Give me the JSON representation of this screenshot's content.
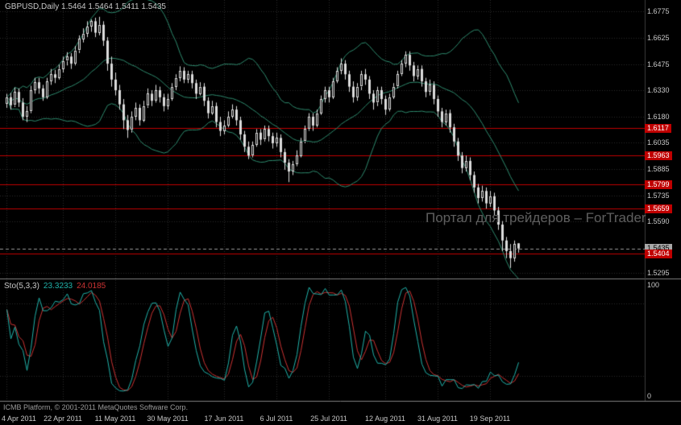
{
  "window": {
    "title": "GBPUSD,Daily 1.5464 1.5464 1.5411 1.5435"
  },
  "watermark": "Портал для трейдеров – ForTrader",
  "footer": {
    "copyright": "ICMB Platform, © 2001-2011 MetaQuotes Software Corp."
  },
  "colors": {
    "background": "#000000",
    "candle": "#dcdcdc",
    "bollinger": "#2e8b6e",
    "stoch_main": "#20b2aa",
    "stoch_signal": "#cc3333",
    "level_red": "#c00000",
    "grid": "#2a2a2a",
    "separator": "#808080",
    "axis_text": "#c8c8c8",
    "bid_line": "#9a9a9a"
  },
  "chart_data": {
    "type": "candlestick",
    "title": "GBPUSD,Daily",
    "last_bar_display": {
      "open": "1.5464",
      "high": "1.5464",
      "low": "1.5411",
      "close": "1.5435"
    },
    "main": {
      "ylim": [
        1.5265,
        1.684
      ],
      "yticks": [
        1.6775,
        1.6625,
        1.6475,
        1.633,
        1.618,
        1.6035,
        1.5885,
        1.5735,
        1.559,
        1.5295
      ],
      "red_levels": [
        1.6117,
        1.5963,
        1.5799,
        1.5659,
        1.5404
      ],
      "current_price": 1.5435,
      "bollinger": {
        "period": 20,
        "deviation": 2
      },
      "ohlc": [
        [
          1.6255,
          1.631,
          1.623,
          1.629
        ],
        [
          1.629,
          1.6315,
          1.622,
          1.6245
        ],
        [
          1.6245,
          1.6345,
          1.6235,
          1.632
        ],
        [
          1.632,
          1.634,
          1.6235,
          1.626
        ],
        [
          1.626,
          1.6285,
          1.616,
          1.618
        ],
        [
          1.618,
          1.624,
          1.615,
          1.621
        ],
        [
          1.621,
          1.6355,
          1.62,
          1.633
        ],
        [
          1.633,
          1.64,
          1.631,
          1.6375
        ],
        [
          1.6375,
          1.64,
          1.631,
          1.634
        ],
        [
          1.634,
          1.636,
          1.627,
          1.629
        ],
        [
          1.629,
          1.64,
          1.628,
          1.638
        ],
        [
          1.638,
          1.645,
          1.636,
          1.642
        ],
        [
          1.642,
          1.6445,
          1.637,
          1.64
        ],
        [
          1.64,
          1.6475,
          1.639,
          1.645
        ],
        [
          1.645,
          1.652,
          1.643,
          1.6495
        ],
        [
          1.6495,
          1.6545,
          1.647,
          1.652
        ],
        [
          1.652,
          1.654,
          1.645,
          1.648
        ],
        [
          1.648,
          1.658,
          1.647,
          1.6555
        ],
        [
          1.6555,
          1.664,
          1.654,
          1.662
        ],
        [
          1.662,
          1.668,
          1.66,
          1.665
        ],
        [
          1.665,
          1.672,
          1.663,
          1.669
        ],
        [
          1.669,
          1.673,
          1.666,
          1.672
        ],
        [
          1.672,
          1.674,
          1.663,
          1.6655
        ],
        [
          1.6655,
          1.6745,
          1.664,
          1.67
        ],
        [
          1.67,
          1.672,
          1.658,
          1.661
        ],
        [
          1.661,
          1.663,
          1.644,
          1.648
        ],
        [
          1.648,
          1.652,
          1.635,
          1.639
        ],
        [
          1.639,
          1.643,
          1.63,
          1.633
        ],
        [
          1.633,
          1.636,
          1.622,
          1.625
        ],
        [
          1.625,
          1.628,
          1.611,
          1.616
        ],
        [
          1.616,
          1.619,
          1.606,
          1.6105
        ],
        [
          1.6105,
          1.621,
          1.609,
          1.618
        ],
        [
          1.618,
          1.626,
          1.616,
          1.623
        ],
        [
          1.623,
          1.625,
          1.613,
          1.616
        ],
        [
          1.616,
          1.627,
          1.615,
          1.624
        ],
        [
          1.624,
          1.634,
          1.623,
          1.631
        ],
        [
          1.631,
          1.633,
          1.624,
          1.627
        ],
        [
          1.627,
          1.636,
          1.626,
          1.633
        ],
        [
          1.633,
          1.635,
          1.626,
          1.629
        ],
        [
          1.629,
          1.631,
          1.621,
          1.624
        ],
        [
          1.624,
          1.631,
          1.622,
          1.628
        ],
        [
          1.628,
          1.637,
          1.627,
          1.635
        ],
        [
          1.635,
          1.642,
          1.633,
          1.64
        ],
        [
          1.64,
          1.6465,
          1.638,
          1.644
        ],
        [
          1.644,
          1.646,
          1.637,
          1.639
        ],
        [
          1.639,
          1.644,
          1.637,
          1.642
        ],
        [
          1.642,
          1.644,
          1.634,
          1.637
        ],
        [
          1.637,
          1.639,
          1.628,
          1.631
        ],
        [
          1.631,
          1.6375,
          1.63,
          1.635
        ],
        [
          1.635,
          1.637,
          1.624,
          1.627
        ],
        [
          1.627,
          1.629,
          1.617,
          1.62
        ],
        [
          1.62,
          1.627,
          1.619,
          1.624
        ],
        [
          1.624,
          1.626,
          1.612,
          1.615
        ],
        [
          1.615,
          1.618,
          1.607,
          1.61
        ],
        [
          1.61,
          1.616,
          1.608,
          1.613
        ],
        [
          1.613,
          1.621,
          1.612,
          1.618
        ],
        [
          1.618,
          1.625,
          1.617,
          1.622
        ],
        [
          1.622,
          1.624,
          1.613,
          1.616
        ],
        [
          1.616,
          1.618,
          1.605,
          1.608
        ],
        [
          1.608,
          1.61,
          1.598,
          1.601
        ],
        [
          1.601,
          1.604,
          1.594,
          1.596
        ],
        [
          1.596,
          1.604,
          1.595,
          1.602
        ],
        [
          1.602,
          1.611,
          1.601,
          1.609
        ],
        [
          1.609,
          1.611,
          1.602,
          1.605
        ],
        [
          1.605,
          1.613,
          1.604,
          1.611
        ],
        [
          1.611,
          1.613,
          1.604,
          1.607
        ],
        [
          1.607,
          1.609,
          1.6,
          1.603
        ],
        [
          1.603,
          1.609,
          1.601,
          1.606
        ],
        [
          1.606,
          1.608,
          1.595,
          1.598
        ],
        [
          1.598,
          1.6,
          1.588,
          1.592
        ],
        [
          1.592,
          1.594,
          1.581,
          1.587
        ],
        [
          1.587,
          1.593,
          1.585,
          1.591
        ],
        [
          1.591,
          1.599,
          1.59,
          1.596
        ],
        [
          1.596,
          1.606,
          1.595,
          1.604
        ],
        [
          1.604,
          1.613,
          1.603,
          1.611
        ],
        [
          1.611,
          1.62,
          1.61,
          1.618
        ],
        [
          1.618,
          1.62,
          1.61,
          1.613
        ],
        [
          1.613,
          1.622,
          1.612,
          1.62
        ],
        [
          1.62,
          1.63,
          1.619,
          1.628
        ],
        [
          1.628,
          1.635,
          1.626,
          1.633
        ],
        [
          1.633,
          1.635,
          1.626,
          1.629
        ],
        [
          1.629,
          1.64,
          1.628,
          1.638
        ],
        [
          1.638,
          1.646,
          1.637,
          1.644
        ],
        [
          1.644,
          1.651,
          1.642,
          1.648
        ],
        [
          1.648,
          1.65,
          1.639,
          1.642
        ],
        [
          1.642,
          1.644,
          1.632,
          1.635
        ],
        [
          1.635,
          1.638,
          1.626,
          1.629
        ],
        [
          1.629,
          1.637,
          1.627,
          1.635
        ],
        [
          1.635,
          1.644,
          1.633,
          1.642
        ],
        [
          1.642,
          1.645,
          1.636,
          1.639
        ],
        [
          1.639,
          1.641,
          1.628,
          1.631
        ],
        [
          1.631,
          1.633,
          1.622,
          1.626
        ],
        [
          1.626,
          1.635,
          1.624,
          1.633
        ],
        [
          1.633,
          1.635,
          1.625,
          1.628
        ],
        [
          1.628,
          1.63,
          1.619,
          1.622
        ],
        [
          1.622,
          1.631,
          1.621,
          1.629
        ],
        [
          1.629,
          1.637,
          1.628,
          1.635
        ],
        [
          1.635,
          1.644,
          1.634,
          1.642
        ],
        [
          1.642,
          1.65,
          1.641,
          1.648
        ],
        [
          1.648,
          1.655,
          1.646,
          1.653
        ],
        [
          1.653,
          1.655,
          1.644,
          1.647
        ],
        [
          1.647,
          1.649,
          1.638,
          1.641
        ],
        [
          1.641,
          1.647,
          1.639,
          1.645
        ],
        [
          1.645,
          1.647,
          1.635,
          1.638
        ],
        [
          1.638,
          1.64,
          1.629,
          1.632
        ],
        [
          1.632,
          1.639,
          1.63,
          1.636
        ],
        [
          1.636,
          1.638,
          1.625,
          1.628
        ],
        [
          1.628,
          1.63,
          1.618,
          1.621
        ],
        [
          1.621,
          1.623,
          1.612,
          1.615
        ],
        [
          1.615,
          1.622,
          1.613,
          1.62
        ],
        [
          1.62,
          1.622,
          1.609,
          1.612
        ],
        [
          1.612,
          1.614,
          1.601,
          1.604
        ],
        [
          1.604,
          1.606,
          1.593,
          1.596
        ],
        [
          1.596,
          1.598,
          1.586,
          1.589
        ],
        [
          1.589,
          1.596,
          1.587,
          1.593
        ],
        [
          1.593,
          1.595,
          1.582,
          1.585
        ],
        [
          1.585,
          1.587,
          1.575,
          1.578
        ],
        [
          1.578,
          1.58,
          1.569,
          1.572
        ],
        [
          1.572,
          1.579,
          1.57,
          1.576
        ],
        [
          1.576,
          1.578,
          1.566,
          1.569
        ],
        [
          1.569,
          1.576,
          1.567,
          1.573
        ],
        [
          1.573,
          1.575,
          1.562,
          1.565
        ],
        [
          1.565,
          1.567,
          1.554,
          1.557
        ],
        [
          1.557,
          1.559,
          1.542,
          1.548
        ],
        [
          1.548,
          1.55,
          1.538,
          1.542
        ],
        [
          1.542,
          1.546,
          1.5325,
          1.538
        ],
        [
          1.538,
          1.548,
          1.536,
          1.546
        ],
        [
          1.5464,
          1.5464,
          1.5411,
          1.5435
        ]
      ]
    },
    "stoch": {
      "label": "Sto(5,3,3)",
      "value_main": "23.3233",
      "value_signal": "24.0185",
      "period_k": 5,
      "period_d": 3,
      "slowing": 3,
      "ylim": [
        0,
        100
      ],
      "yticks": [
        100,
        0
      ],
      "levels": [
        20,
        80
      ]
    },
    "x_labels": [
      {
        "i": 0,
        "t": "4 Apr 2011"
      },
      {
        "i": 14,
        "t": "22 Apr 2011"
      },
      {
        "i": 27,
        "t": "11 May 2011"
      },
      {
        "i": 40,
        "t": "30 May 2011"
      },
      {
        "i": 54,
        "t": "17 Jun 2011"
      },
      {
        "i": 67,
        "t": "6 Jul 2011"
      },
      {
        "i": 80,
        "t": "25 Jul 2011"
      },
      {
        "i": 94,
        "t": "12 Aug 2011"
      },
      {
        "i": 107,
        "t": "31 Aug 2011"
      },
      {
        "i": 120,
        "t": "19 Sep 2011"
      }
    ]
  }
}
